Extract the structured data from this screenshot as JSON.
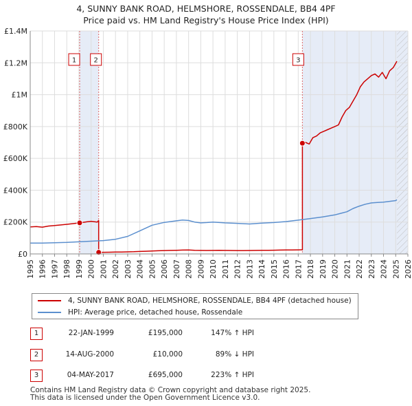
{
  "chart_data": {
    "type": "line",
    "title": "4, SUNNY BANK ROAD, HELMSHORE, ROSSENDALE, BB4 4PF",
    "subtitle": "Price paid vs. HM Land Registry's House Price Index (HPI)",
    "xlabel": "",
    "ylabel": "",
    "xlim": [
      1995,
      2026
    ],
    "ylim": [
      0,
      1400000
    ],
    "x_ticks": [
      "1995",
      "1996",
      "1997",
      "1998",
      "1999",
      "2000",
      "2001",
      "2002",
      "2003",
      "2004",
      "2005",
      "2006",
      "2007",
      "2008",
      "2009",
      "2010",
      "2011",
      "2012",
      "2013",
      "2014",
      "2015",
      "2016",
      "2017",
      "2018",
      "2019",
      "2020",
      "2021",
      "2022",
      "2023",
      "2024",
      "2025",
      "2026"
    ],
    "y_ticks": [
      {
        "value": 0,
        "label": "£0"
      },
      {
        "value": 200000,
        "label": "£200K"
      },
      {
        "value": 400000,
        "label": "£400K"
      },
      {
        "value": 600000,
        "label": "£600K"
      },
      {
        "value": 800000,
        "label": "£800K"
      },
      {
        "value": 1000000,
        "label": "£1M"
      },
      {
        "value": 1200000,
        "label": "£1.2M"
      },
      {
        "value": 1400000,
        "label": "£1.4M"
      }
    ],
    "grid": true,
    "shaded_regions": [
      {
        "x0": 1999.06,
        "x1": 2000.62
      },
      {
        "x0": 2017.34,
        "x1": 2026
      }
    ],
    "hatched_region": {
      "x0": 2025.1,
      "x1": 2026
    },
    "sales": [
      {
        "label": "1",
        "x": 1999.06,
        "y": 195000
      },
      {
        "label": "2",
        "x": 2000.62,
        "y": 10000
      },
      {
        "label": "3",
        "x": 2017.34,
        "y": 695000
      }
    ],
    "series": [
      {
        "name": "4, SUNNY BANK ROAD, HELMSHORE, ROSSENDALE, BB4 4PF (detached house)",
        "color": "#cc0000",
        "x": [
          1995.0,
          1995.5,
          1996.0,
          1996.5,
          1997.0,
          1997.5,
          1998.0,
          1998.5,
          1999.06,
          1999.5,
          2000.0,
          2000.5,
          2000.62,
          2000.62,
          2001.0,
          2001.5,
          2002.0,
          2002.5,
          2003.0,
          2003.5,
          2004.0,
          2004.5,
          2005.0,
          2005.5,
          2006.0,
          2006.5,
          2007.0,
          2007.5,
          2008.0,
          2008.5,
          2009.0,
          2009.5,
          2010.0,
          2010.5,
          2011.0,
          2011.5,
          2012.0,
          2012.5,
          2013.0,
          2013.5,
          2014.0,
          2014.5,
          2015.0,
          2015.5,
          2016.0,
          2016.5,
          2017.0,
          2017.3,
          2017.34,
          2017.34,
          2017.6,
          2017.9,
          2018.2,
          2018.5,
          2018.8,
          2019.1,
          2019.4,
          2019.7,
          2020.0,
          2020.3,
          2020.6,
          2020.9,
          2021.2,
          2021.5,
          2021.8,
          2022.1,
          2022.4,
          2022.7,
          2023.0,
          2023.3,
          2023.6,
          2023.9,
          2024.2,
          2024.5,
          2024.8,
          2025.1
        ],
        "y": [
          170000,
          172000,
          168000,
          175000,
          178000,
          182000,
          186000,
          190000,
          195000,
          200000,
          205000,
          200000,
          210000,
          10000,
          10500,
          11000,
          11500,
          12000,
          13000,
          14000,
          15500,
          17000,
          18500,
          20000,
          21000,
          22000,
          23000,
          24000,
          24500,
          23000,
          22000,
          21500,
          22000,
          22500,
          22000,
          21500,
          21000,
          21000,
          21500,
          22000,
          22500,
          23000,
          23500,
          24000,
          24500,
          25000,
          25500,
          26000,
          26000,
          695000,
          700000,
          690000,
          730000,
          740000,
          760000,
          770000,
          780000,
          790000,
          800000,
          810000,
          860000,
          900000,
          920000,
          960000,
          1000000,
          1050000,
          1080000,
          1100000,
          1120000,
          1130000,
          1110000,
          1140000,
          1100000,
          1150000,
          1170000,
          1210000
        ]
      },
      {
        "name": "HPI: Average price, detached house, Rossendale",
        "color": "#5b8fce",
        "x": [
          1995.0,
          1996.0,
          1997.0,
          1998.0,
          1999.0,
          2000.0,
          2001.0,
          2002.0,
          2003.0,
          2004.0,
          2005.0,
          2006.0,
          2007.0,
          2007.5,
          2008.0,
          2008.5,
          2009.0,
          2009.5,
          2010.0,
          2011.0,
          2012.0,
          2013.0,
          2014.0,
          2015.0,
          2016.0,
          2017.0,
          2018.0,
          2019.0,
          2020.0,
          2020.5,
          2021.0,
          2021.5,
          2022.0,
          2022.5,
          2023.0,
          2023.5,
          2024.0,
          2024.5,
          2025.0,
          2025.1
        ],
        "y": [
          68000,
          68000,
          70000,
          72000,
          76000,
          80000,
          84000,
          92000,
          110000,
          145000,
          180000,
          198000,
          208000,
          213000,
          210000,
          200000,
          195000,
          197000,
          200000,
          195000,
          192000,
          188000,
          193000,
          197000,
          203000,
          212000,
          222000,
          232000,
          245000,
          255000,
          265000,
          285000,
          300000,
          312000,
          320000,
          323000,
          325000,
          330000,
          335000,
          340000
        ]
      }
    ]
  },
  "legend": [
    {
      "label": "4, SUNNY BANK ROAD, HELMSHORE, ROSSENDALE, BB4 4PF (detached house)",
      "color": "#cc0000"
    },
    {
      "label": "HPI: Average price, detached house, Rossendale",
      "color": "#5b8fce"
    }
  ],
  "transactions": [
    {
      "num": "1",
      "date": "22-JAN-1999",
      "price": "£195,000",
      "hpi": "147% ↑ HPI"
    },
    {
      "num": "2",
      "date": "14-AUG-2000",
      "price": "£10,000",
      "hpi": "89% ↓ HPI"
    },
    {
      "num": "3",
      "date": "04-MAY-2017",
      "price": "£695,000",
      "hpi": "223% ↑ HPI"
    }
  ],
  "footer": {
    "line1": "Contains HM Land Registry data © Crown copyright and database right 2025.",
    "line2": "This data is licensed under the Open Government Licence v3.0."
  }
}
